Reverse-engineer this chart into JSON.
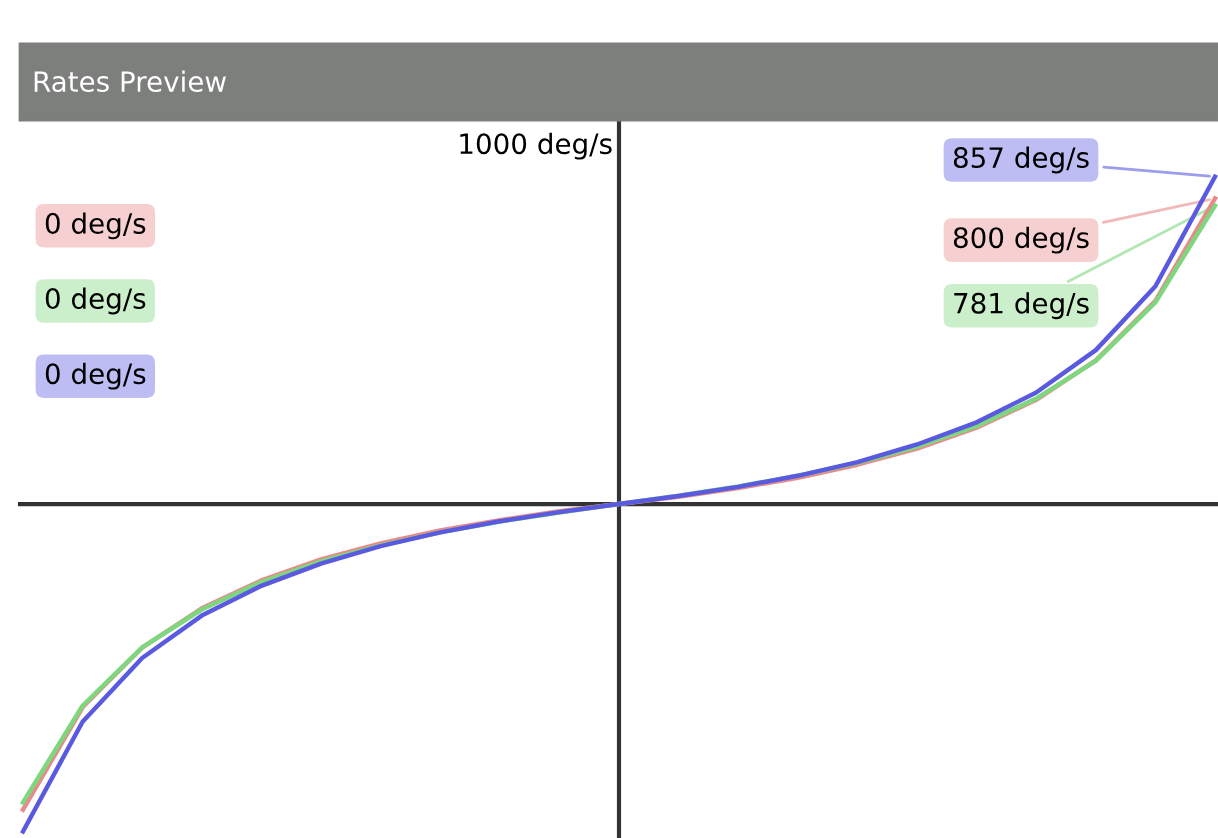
{
  "chart_data": {
    "type": "line",
    "title": "Rates Preview",
    "categories": [
      null,
      null,
      null,
      null,
      null,
      null,
      null,
      null,
      null,
      null,
      null,
      null,
      null,
      null,
      null,
      null,
      null,
      null,
      null,
      null,
      null
    ],
    "series": [
      {
        "color": "#e88a8a",
        "values": [
          -800,
          -532,
          -376,
          -273,
          -200,
          -145,
          -103,
          -69,
          -42,
          -19,
          0,
          19,
          42,
          69,
          103,
          145,
          200,
          273,
          376,
          532,
          800
        ],
        "value_labels": [
          null,
          null,
          null,
          null,
          null,
          null,
          null,
          null,
          null,
          null,
          null,
          null,
          null,
          null,
          null,
          null,
          null,
          null,
          null,
          null,
          "800 deg/s"
        ]
      },
      {
        "color": "#7ed67e",
        "values": [
          -781,
          -528,
          -375,
          -276,
          -204,
          -150,
          -108,
          -74,
          -46,
          -22,
          0,
          22,
          46,
          74,
          108,
          150,
          204,
          276,
          375,
          528,
          781
        ],
        "value_labels": [
          null,
          null,
          null,
          null,
          null,
          null,
          null,
          null,
          null,
          null,
          null,
          null,
          null,
          null,
          null,
          null,
          null,
          null,
          null,
          null,
          "781 deg/s"
        ]
      },
      {
        "color": "#5a5ae0",
        "values": [
          -857,
          -570,
          -403,
          -292,
          -214,
          -156,
          -110,
          -74,
          -45,
          -21,
          0,
          21,
          45,
          74,
          110,
          156,
          214,
          292,
          403,
          570,
          857
        ],
        "value_labels": [
          null,
          null,
          null,
          null,
          null,
          null,
          null,
          null,
          null,
          null,
          null,
          null,
          null,
          null,
          null,
          null,
          null,
          null,
          null,
          null,
          "857 deg/s"
        ]
      }
    ],
    "annotations": [
      "1000 deg/s",
      "0 deg/s",
      "0 deg/s",
      "0 deg/s"
    ]
  }
}
